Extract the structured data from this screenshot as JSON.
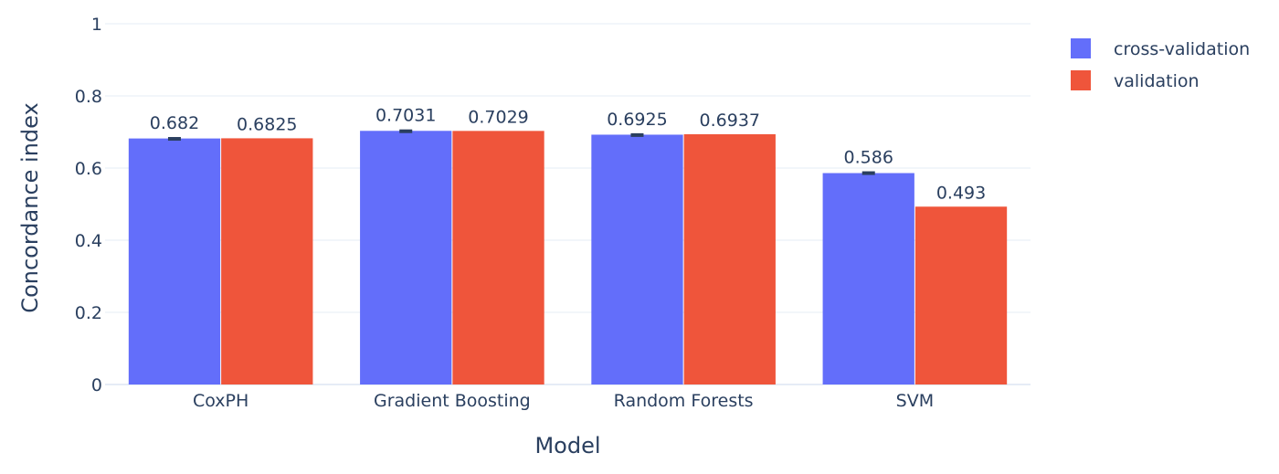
{
  "chart_data": {
    "type": "bar",
    "title": "",
    "xlabel": "Model",
    "ylabel": "Concordance index",
    "categories": [
      "CoxPH",
      "Gradient Boosting",
      "Random Forests",
      "SVM"
    ],
    "series": [
      {
        "name": "cross-validation",
        "color": "#636efa",
        "values": [
          0.682,
          0.7031,
          0.6925,
          0.586
        ],
        "labels": [
          "0.682",
          "0.7031",
          "0.6925",
          "0.586"
        ],
        "error": [
          0.004,
          0.004,
          0.004,
          0.005
        ]
      },
      {
        "name": "validation",
        "color": "#ef553b",
        "values": [
          0.6825,
          0.7029,
          0.6937,
          0.493
        ],
        "labels": [
          "0.6825",
          "0.7029",
          "0.6937",
          "0.493"
        ]
      }
    ],
    "ylim": [
      0,
      1
    ],
    "yticks": [
      0,
      0.2,
      0.4,
      0.6,
      0.8,
      1
    ],
    "ytick_labels": [
      "0",
      "0.2",
      "0.4",
      "0.6",
      "0.8",
      "1"
    ],
    "grid": true,
    "legend_position": "top-right",
    "colors": {
      "gridline": "#e5ecf6",
      "error_bar": "#2a3f5f",
      "text": "#2a3f5f"
    }
  }
}
